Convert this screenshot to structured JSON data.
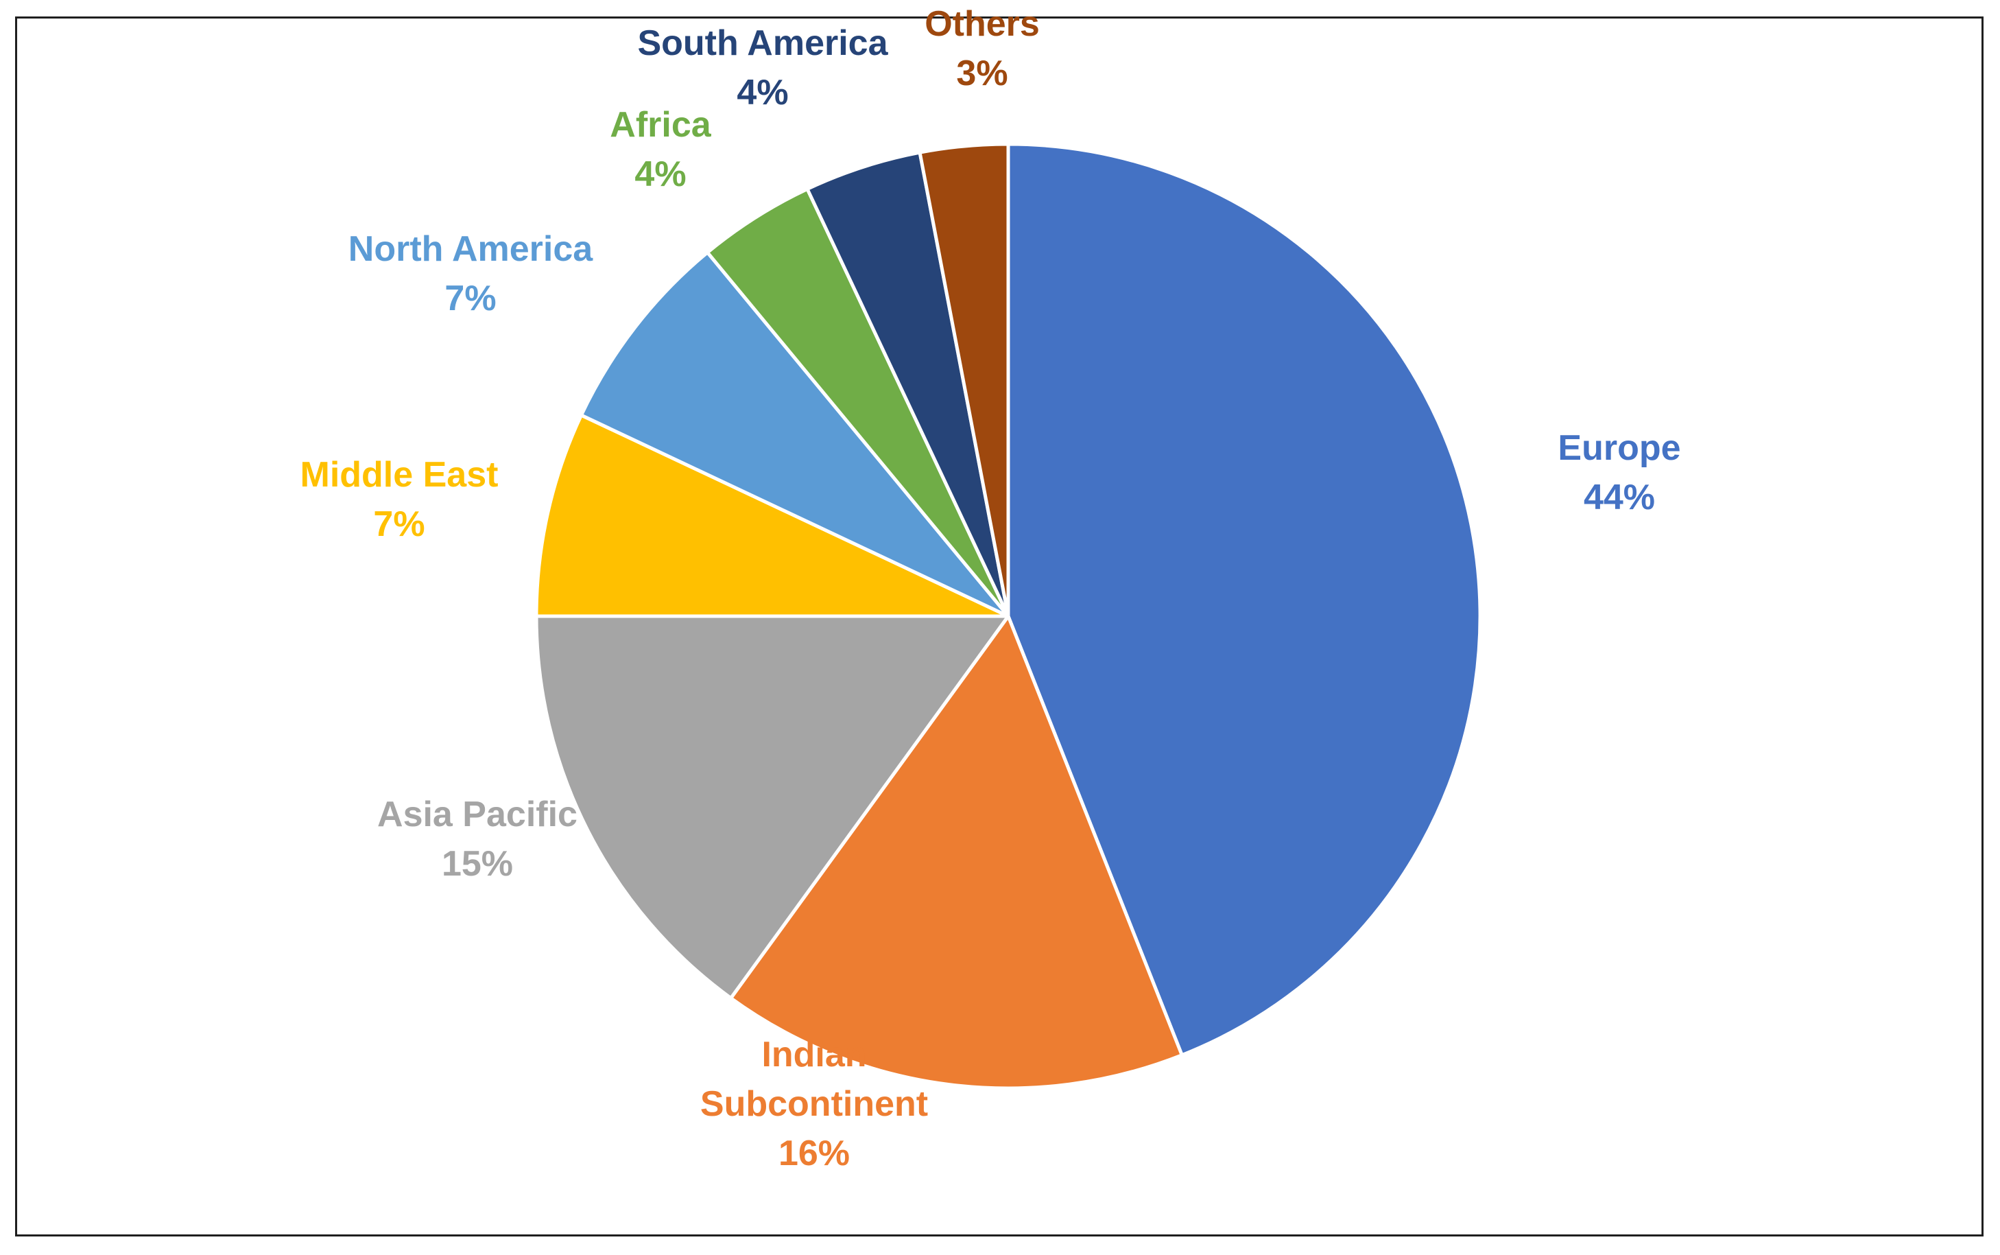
{
  "chart_data": {
    "type": "pie",
    "title": "",
    "start_angle_deg": 0,
    "direction": "clockwise",
    "slices": [
      {
        "name": "Europe",
        "label_lines": [
          "Europe"
        ],
        "value": 44,
        "value_label": "44%",
        "color": "#4472C4"
      },
      {
        "name": "Indian Subcontinent",
        "label_lines": [
          "Indian",
          "Subcontinent"
        ],
        "value": 16,
        "value_label": "16%",
        "color": "#ED7D31"
      },
      {
        "name": "Asia Pacific",
        "label_lines": [
          "Asia Pacific"
        ],
        "value": 15,
        "value_label": "15%",
        "color": "#A5A5A5"
      },
      {
        "name": "Middle East",
        "label_lines": [
          "Middle East"
        ],
        "value": 7,
        "value_label": "7%",
        "color": "#FFC000"
      },
      {
        "name": "North America",
        "label_lines": [
          "North America"
        ],
        "value": 7,
        "value_label": "7%",
        "color": "#5B9BD5"
      },
      {
        "name": "Africa",
        "label_lines": [
          "Africa"
        ],
        "value": 4,
        "value_label": "4%",
        "color": "#70AD47"
      },
      {
        "name": "South America",
        "label_lines": [
          "South America"
        ],
        "value": 4,
        "value_label": "4%",
        "color": "#264478"
      },
      {
        "name": "Others",
        "label_lines": [
          "Others"
        ],
        "value": 3,
        "value_label": "3%",
        "color": "#9E480E"
      }
    ],
    "slice_border_color": "#FFFFFF"
  }
}
